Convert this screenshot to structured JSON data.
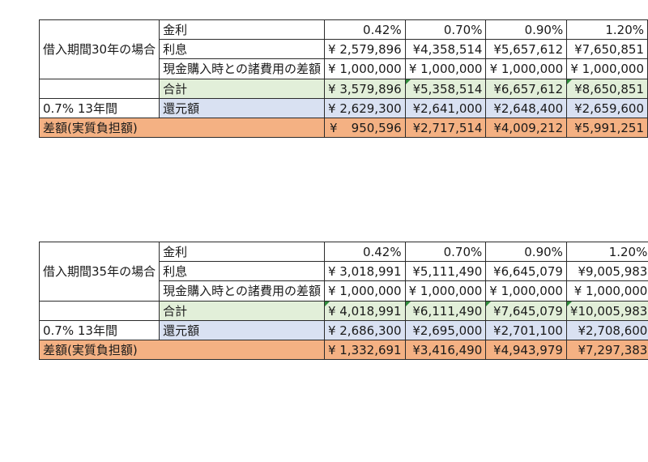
{
  "tables": [
    {
      "period_label": "借入期間30年の場合",
      "rows": {
        "rate": {
          "label": "金利",
          "values": [
            "0.42%",
            "0.70%",
            "0.90%",
            "1.20%"
          ]
        },
        "interest": {
          "label": "利息",
          "values": [
            "¥ 2,579,896",
            "¥4,358,514",
            "¥5,657,612",
            "¥7,650,851"
          ]
        },
        "cash_diff": {
          "label": "現金購入時との諸費用の差額",
          "values": [
            "¥ 1,000,000",
            "¥ 1,000,000",
            "¥ 1,000,000",
            "¥ 1,000,000"
          ]
        },
        "total": {
          "label": "合計",
          "values": [
            "¥ 3,579,896",
            "¥5,358,514",
            "¥6,657,612",
            "¥8,650,851"
          ]
        },
        "refund": {
          "condition": "0.7% 13年間",
          "label": "還元額",
          "values": [
            "¥ 2,629,300",
            "¥2,641,000",
            "¥2,648,400",
            "¥2,659,600"
          ]
        },
        "net": {
          "label": "差額(実質負担額)",
          "first_yen": "¥",
          "first_amount": "950,596",
          "values": [
            "¥2,717,514",
            "¥4,009,212",
            "¥5,991,251"
          ]
        }
      }
    },
    {
      "period_label": "借入期間35年の場合",
      "rows": {
        "rate": {
          "label": "金利",
          "values": [
            "0.42%",
            "0.70%",
            "0.90%",
            "1.20%"
          ]
        },
        "interest": {
          "label": "利息",
          "values": [
            "¥ 3,018,991",
            "¥5,111,490",
            "¥6,645,079",
            "¥9,005,983"
          ]
        },
        "cash_diff": {
          "label": "現金購入時との諸費用の差額",
          "values": [
            "¥ 1,000,000",
            "¥ 1,000,000",
            "¥ 1,000,000",
            "¥ 1,000,000"
          ]
        },
        "total": {
          "label": "合計",
          "values": [
            "¥ 4,018,991",
            "¥6,111,490",
            "¥7,645,079",
            "¥10,005,983"
          ]
        },
        "refund": {
          "condition": "0.7% 13年間",
          "label": "還元額",
          "values": [
            "¥ 2,686,300",
            "¥2,695,000",
            "¥2,701,100",
            "¥2,708,600"
          ]
        },
        "net": {
          "label": "差額(実質負担額)",
          "values": [
            "¥ 1,332,691",
            "¥3,416,490",
            "¥4,943,979",
            "¥7,297,383"
          ]
        }
      }
    }
  ],
  "colors": {
    "total_fill": "#e2efd9",
    "refund_fill": "#d9e1f2",
    "net_fill": "#f4b183",
    "marker": "#2e8b3a"
  }
}
